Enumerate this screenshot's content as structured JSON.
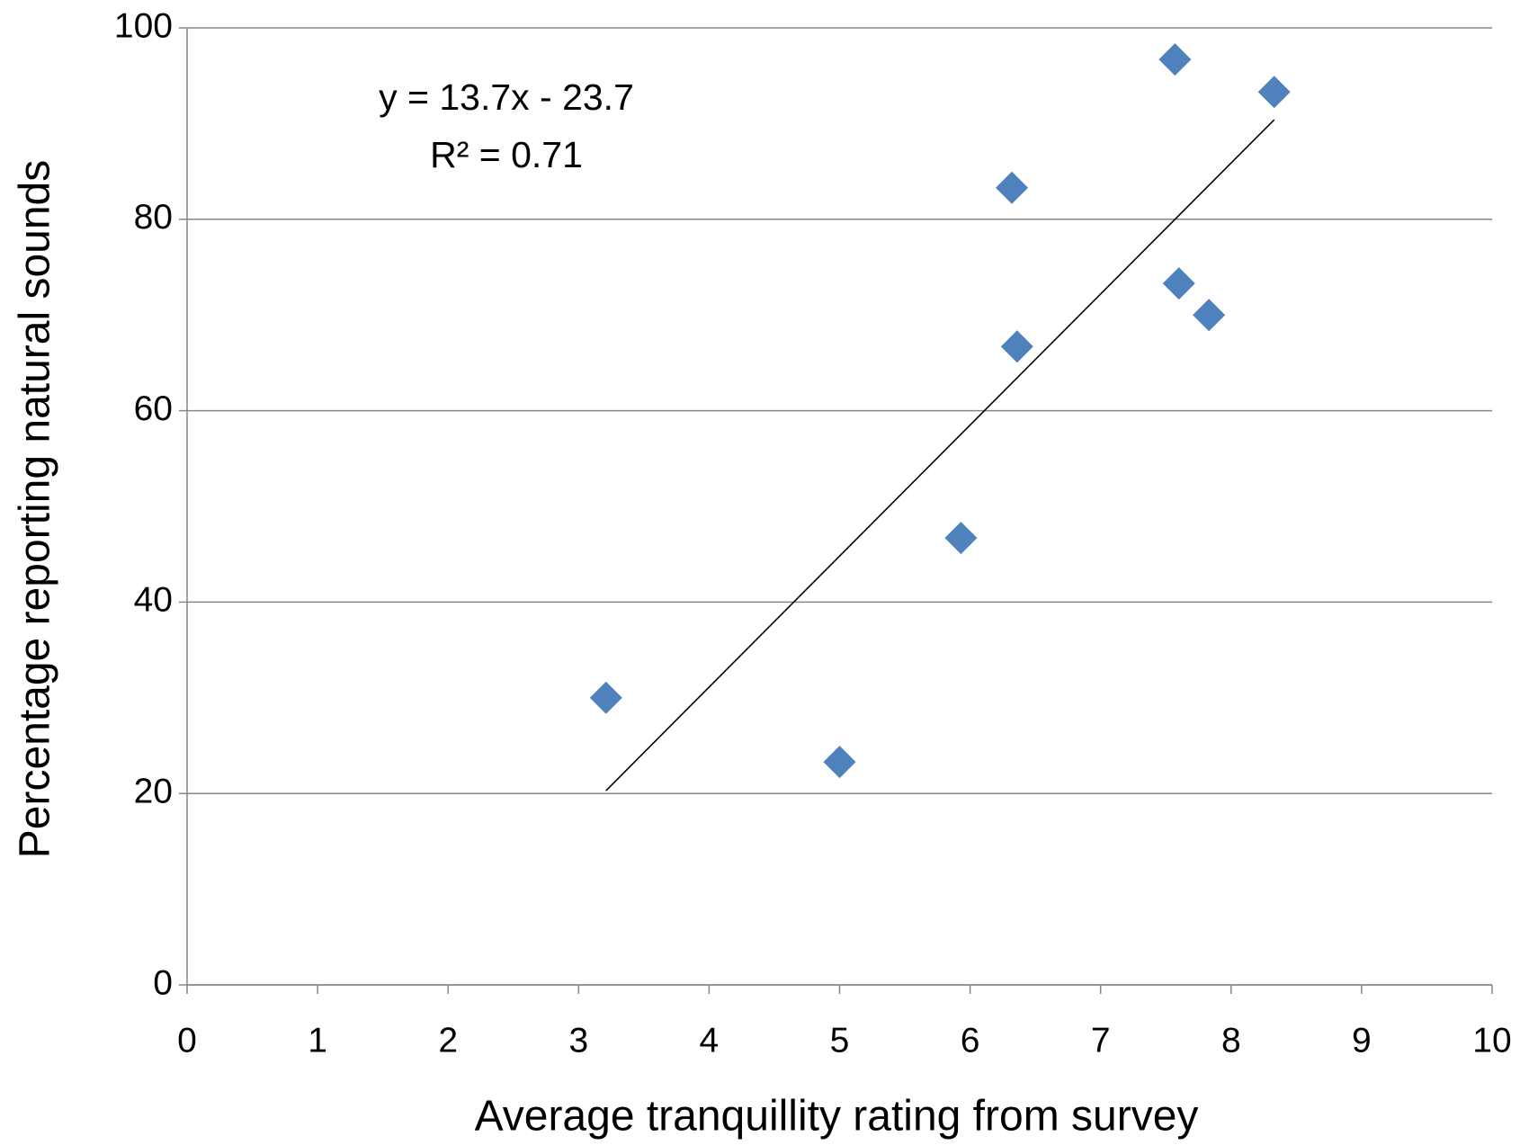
{
  "chart_data": {
    "type": "scatter",
    "x_label": "Average tranquillity rating from survey",
    "y_label": "Percentage reporting  natural sounds",
    "annotations": [
      "y = 13.7x - 23.7",
      "R² = 0.71"
    ],
    "x": [
      3.21,
      5.0,
      5.93,
      6.32,
      6.36,
      7.57,
      7.6,
      7.83,
      8.33
    ],
    "values": [
      30,
      23.3,
      46.7,
      83.3,
      66.7,
      96.7,
      73.3,
      70,
      93.3
    ],
    "color": "#4f81bd",
    "trendline": {
      "x": [
        3.21,
        8.33
      ],
      "y": [
        20.3,
        90.4
      ],
      "color": "#000000"
    },
    "xlim": [
      0,
      10
    ],
    "xticks": [
      0,
      1,
      2,
      3,
      4,
      5,
      6,
      7,
      8,
      9,
      10
    ],
    "ylim": [
      0,
      100
    ],
    "yticks": [
      0,
      20,
      40,
      60,
      80,
      100
    ],
    "grid": true
  }
}
